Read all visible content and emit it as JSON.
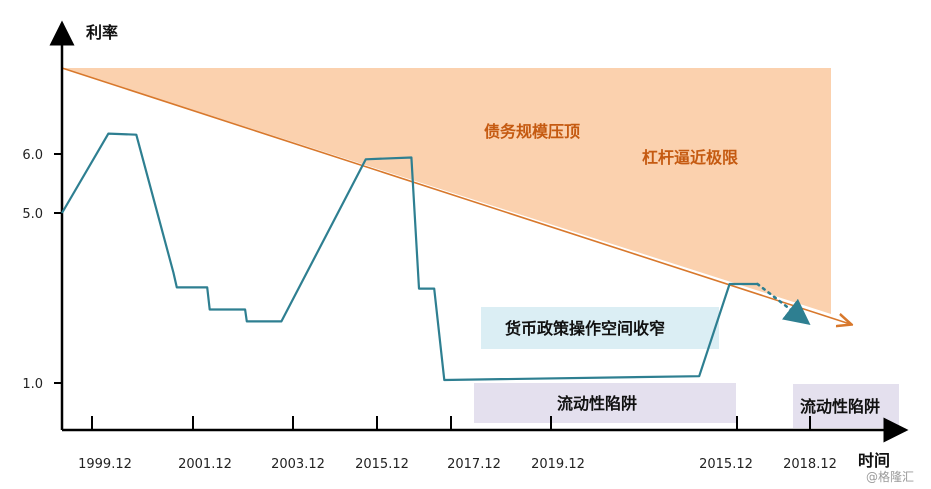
{
  "chart_data": {
    "type": "line",
    "title": "",
    "xlabel": "时间",
    "ylabel": "利率",
    "yticks": [
      {
        "label": "6.0",
        "value": 6.0
      },
      {
        "label": "5.0",
        "value": 5.0
      },
      {
        "label": "1.0",
        "value": 1.0
      }
    ],
    "xticks": [
      "1999.12",
      "2001.12",
      "2003.12",
      "2015.12",
      "2017.12",
      "2019.12",
      "2015.12",
      "2018.12"
    ],
    "grid": false,
    "series": [
      {
        "color": "#2e7f91",
        "points": [
          [
            0.0,
            5.0
          ],
          [
            5.5,
            6.36
          ],
          [
            8.8,
            6.34
          ],
          [
            13.2,
            3.6
          ],
          [
            13.6,
            3.25
          ],
          [
            17.2,
            3.25
          ],
          [
            17.5,
            2.73
          ],
          [
            21.7,
            2.73
          ],
          [
            21.9,
            2.45
          ],
          [
            26.0,
            2.45
          ],
          [
            36.0,
            5.91
          ],
          [
            41.4,
            5.94
          ],
          [
            42.3,
            3.22
          ],
          [
            44.1,
            3.22
          ],
          [
            45.3,
            1.07
          ],
          [
            75.5,
            1.16
          ],
          [
            79.1,
            3.33
          ],
          [
            82.4,
            3.33
          ]
        ],
        "projection": {
          "style": "dotted",
          "points": [
            [
              82.4,
              3.33
            ],
            [
              88.2,
              2.44
            ]
          ]
        }
      }
    ],
    "annotations": {
      "debt_ceiling": "债务规模压顶",
      "leverage_limit": "杠杆逼近极限",
      "policy_space": "货币政策操作空间收窄",
      "liquidity_trap_1": "流动性陷阱",
      "liquidity_trap_2": "流动性陷阱"
    },
    "colors": {
      "line": "#2e7f91",
      "orange_fill": "#fbd1ae",
      "orange_trend": "#d8782c",
      "policy_box": "#dbeef4",
      "trap_box": "#e4e0ee",
      "axis": "#000000"
    }
  },
  "watermark": "@格隆汇"
}
